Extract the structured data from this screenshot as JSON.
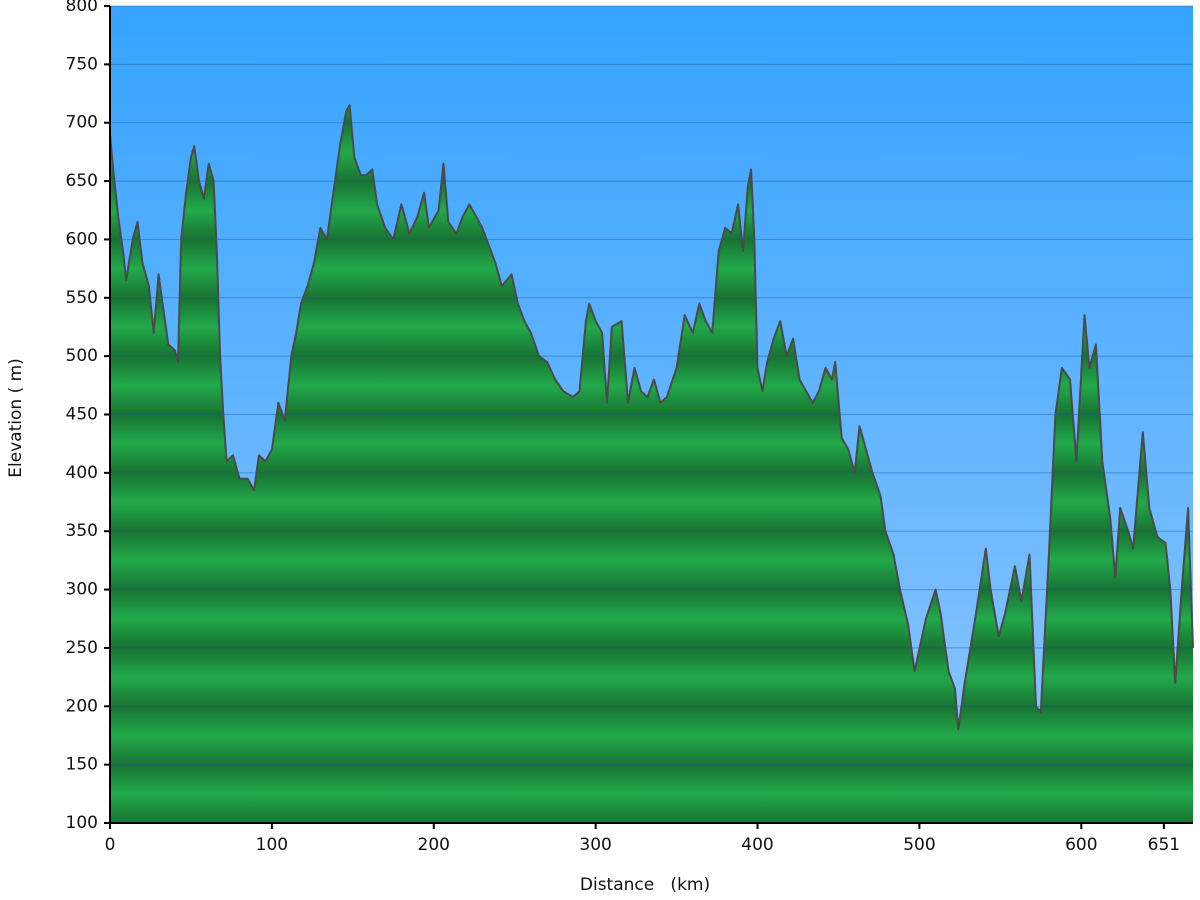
{
  "chart_data": {
    "type": "area",
    "xlabel": "Distance   (km)",
    "ylabel": "Elevation ( m)",
    "color": "#22a94a",
    "line_color": "#4a4a4a",
    "grid": true,
    "xlim": [
      0,
      669
    ],
    "xticks": [
      0,
      100,
      200,
      300,
      400,
      500,
      600,
      651
    ],
    "ylim": [
      100,
      800
    ],
    "yticks": [
      100,
      150,
      200,
      250,
      300,
      350,
      400,
      450,
      500,
      550,
      600,
      650,
      700,
      750,
      800
    ],
    "x": [
      0,
      2,
      5,
      8,
      10,
      14,
      17,
      20,
      24,
      27,
      30,
      33,
      36,
      40,
      42,
      44,
      47,
      50,
      52,
      55,
      58,
      61,
      64,
      66,
      68,
      70,
      72,
      76,
      80,
      85,
      89,
      92,
      96,
      100,
      104,
      108,
      112,
      115,
      118,
      122,
      126,
      130,
      134,
      138,
      142,
      146,
      148,
      151,
      155,
      158,
      162,
      165,
      170,
      175,
      180,
      185,
      190,
      194,
      197,
      203,
      206,
      209,
      214,
      218,
      222,
      226,
      230,
      234,
      238,
      242,
      248,
      252,
      256,
      260,
      265,
      270,
      275,
      280,
      286,
      290,
      294,
      296,
      300,
      304,
      307,
      310,
      316,
      320,
      324,
      328,
      332,
      336,
      340,
      344,
      350,
      355,
      360,
      364,
      368,
      372,
      376,
      380,
      384,
      388,
      391,
      394,
      396,
      398,
      400,
      403,
      406,
      410,
      414,
      418,
      422,
      426,
      430,
      434,
      438,
      442,
      446,
      448,
      452,
      456,
      460,
      463,
      467,
      471,
      476,
      479,
      484,
      488,
      493,
      497,
      504,
      510,
      513,
      518,
      522,
      524,
      528,
      535,
      541,
      544,
      549,
      553,
      559,
      563,
      568,
      572,
      575,
      580,
      584,
      588,
      593,
      597,
      602,
      605,
      609,
      613,
      618,
      621,
      624,
      629,
      632,
      638,
      642,
      647,
      652,
      655,
      658,
      662,
      666,
      669
    ],
    "values": [
      690,
      660,
      620,
      590,
      565,
      600,
      615,
      580,
      560,
      520,
      570,
      540,
      510,
      505,
      495,
      600,
      640,
      670,
      680,
      650,
      635,
      665,
      650,
      590,
      500,
      450,
      410,
      415,
      395,
      395,
      385,
      415,
      410,
      420,
      460,
      445,
      500,
      520,
      545,
      560,
      580,
      610,
      600,
      640,
      680,
      710,
      715,
      670,
      655,
      655,
      660,
      630,
      610,
      600,
      630,
      605,
      620,
      640,
      610,
      625,
      665,
      615,
      605,
      620,
      630,
      620,
      610,
      595,
      580,
      560,
      570,
      545,
      530,
      520,
      500,
      495,
      480,
      470,
      465,
      470,
      530,
      545,
      530,
      520,
      460,
      525,
      530,
      460,
      490,
      470,
      465,
      480,
      460,
      465,
      490,
      535,
      520,
      545,
      530,
      520,
      590,
      610,
      605,
      630,
      590,
      645,
      660,
      600,
      490,
      470,
      495,
      515,
      530,
      500,
      515,
      480,
      470,
      460,
      470,
      490,
      480,
      495,
      430,
      420,
      400,
      440,
      420,
      400,
      380,
      350,
      330,
      300,
      270,
      230,
      275,
      300,
      280,
      230,
      215,
      180,
      220,
      280,
      335,
      300,
      260,
      280,
      320,
      290,
      330,
      200,
      195,
      330,
      450,
      490,
      480,
      410,
      535,
      490,
      510,
      410,
      360,
      310,
      370,
      350,
      335,
      435,
      370,
      345,
      340,
      300,
      220,
      300,
      370,
      250
    ]
  }
}
